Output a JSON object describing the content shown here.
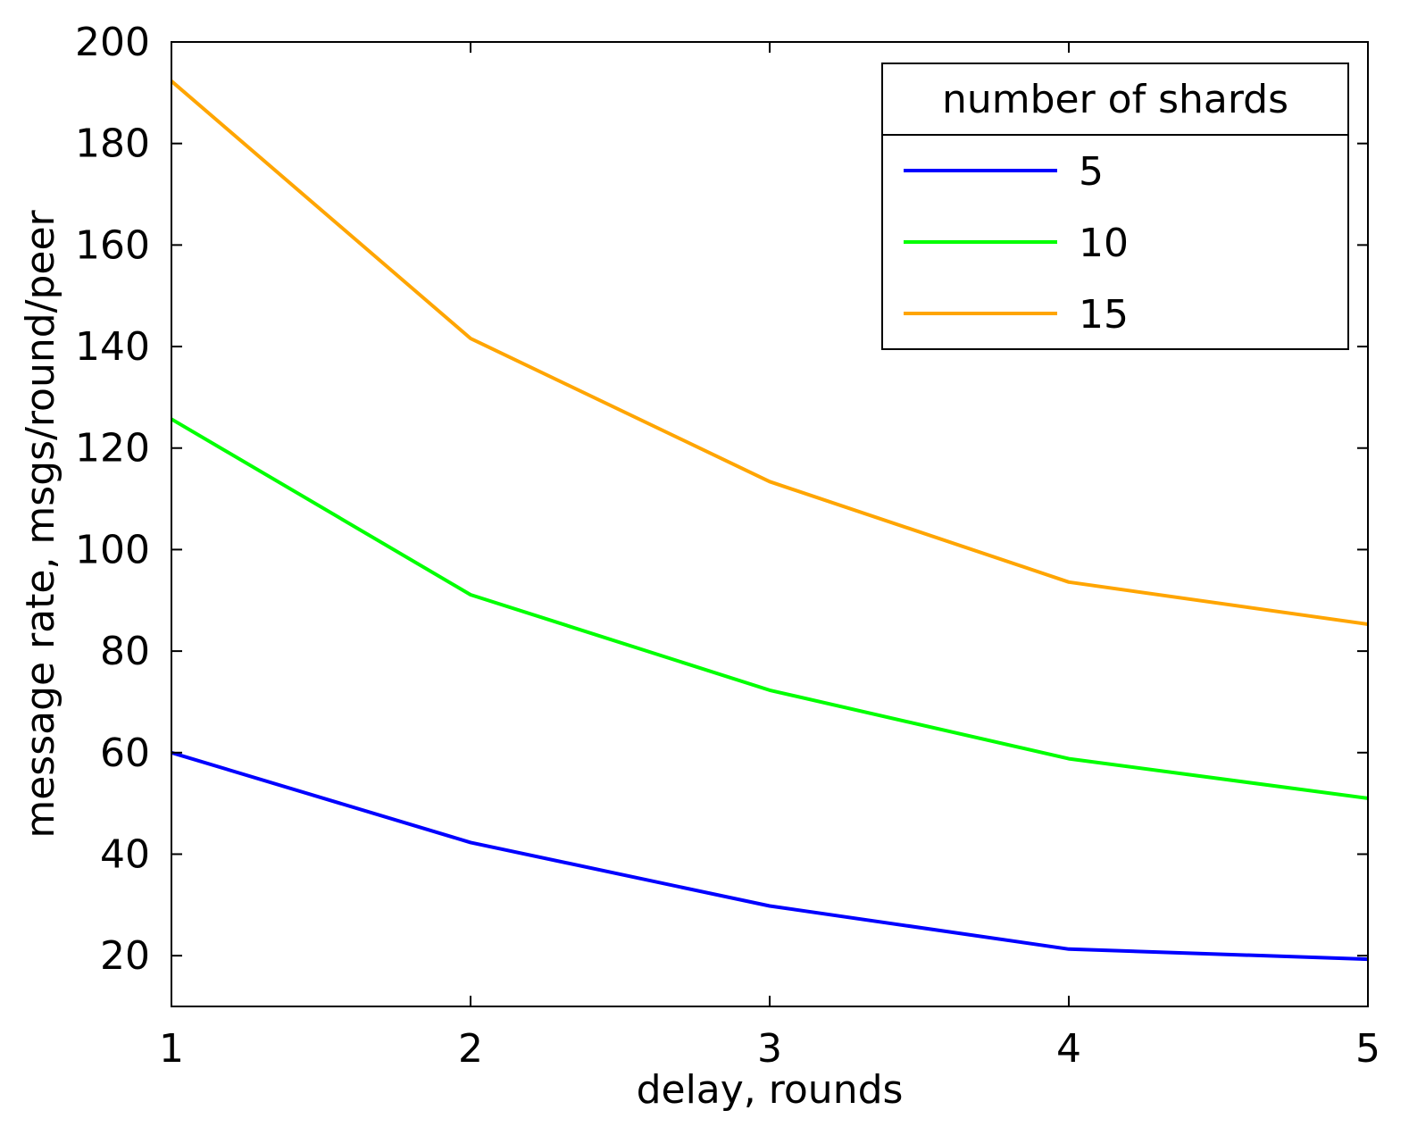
{
  "chart_data": {
    "type": "line",
    "title": "",
    "xlabel": "delay, rounds",
    "ylabel": "message rate, msgs/round/peer",
    "x": [
      1,
      2,
      3,
      4,
      5
    ],
    "xlim": [
      1,
      5
    ],
    "ylim": [
      10,
      200
    ],
    "xticks": [
      1,
      2,
      3,
      4,
      5
    ],
    "yticks": [
      20,
      40,
      60,
      80,
      100,
      120,
      140,
      160,
      180,
      200
    ],
    "xtick_labels": [
      "1",
      "2",
      "3",
      "4",
      "5"
    ],
    "ytick_labels": [
      "20",
      "40",
      "60",
      "80",
      "100",
      "120",
      "140",
      "160",
      "180",
      "200"
    ],
    "grid": false,
    "legend": {
      "title": "number of shards",
      "placement": "top-right"
    },
    "series": [
      {
        "name": "5",
        "color": "#0000ff",
        "values": [
          60,
          42.3,
          29.8,
          21.3,
          19.3
        ]
      },
      {
        "name": "10",
        "color": "#00ff00",
        "values": [
          125.7,
          91.1,
          72.3,
          58.8,
          51
        ]
      },
      {
        "name": "15",
        "color": "#ffa500",
        "values": [
          192.3,
          141.6,
          113.4,
          93.6,
          85.3
        ]
      }
    ]
  }
}
